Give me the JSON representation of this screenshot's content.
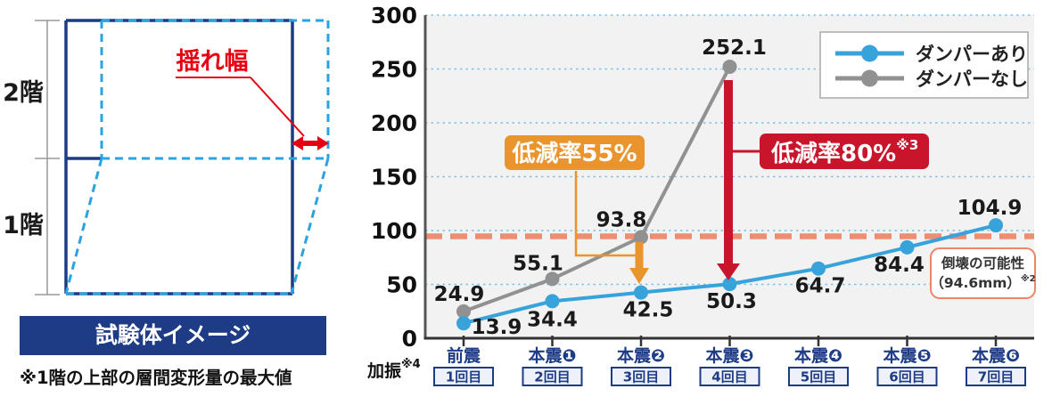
{
  "diagram": {
    "floor2_label": "2階",
    "floor1_label": "1階",
    "sway_label": "揺れ幅",
    "banner": "試験体イメージ",
    "caption": "※1階の上部の層間変形量の最大値",
    "colors": {
      "navy": "#1e3c85",
      "frame_navy": "#1b3b82",
      "deformed_blue": "#2aa3e0",
      "red": "#e60012"
    }
  },
  "chart_data": {
    "type": "line",
    "title": "",
    "categories": [
      "前震",
      "本震❶",
      "本震❷",
      "本震❸",
      "本震❹",
      "本震❺",
      "本震❻"
    ],
    "trial_labels": [
      "1回目",
      "2回目",
      "3回目",
      "4回目",
      "5回目",
      "6回目",
      "7回目"
    ],
    "x_axis_label": "加振",
    "x_axis_label_sup": "※4",
    "ylim": [
      0,
      300
    ],
    "ytick_interval": 50,
    "yticks": [
      0,
      50,
      100,
      150,
      200,
      250,
      300
    ],
    "grid": true,
    "grid_color": "#7cc0e8",
    "plot_bg": "#f2f2f2",
    "legend_position": "top-right",
    "series": [
      {
        "name": "ダンパーあり",
        "color": "#38a3da",
        "values": [
          13.9,
          34.4,
          42.5,
          50.3,
          64.7,
          84.4,
          104.9
        ]
      },
      {
        "name": "ダンパーなし",
        "color": "#919191",
        "values": [
          24.9,
          55.1,
          93.8,
          252.1
        ]
      }
    ],
    "threshold_line": {
      "value": 94.6,
      "color": "#ef8468",
      "label_line1": "倒壊の可能性",
      "label_line2": "（94.6mm）",
      "label_sup": "※2"
    },
    "annotations": [
      {
        "text": "低減率55%",
        "sup": "",
        "color": "#e9942d",
        "target_category": "本震❷"
      },
      {
        "text": "低減率80%",
        "sup": "※3",
        "color": "#c9152b",
        "target_category": "本震❸"
      }
    ]
  }
}
